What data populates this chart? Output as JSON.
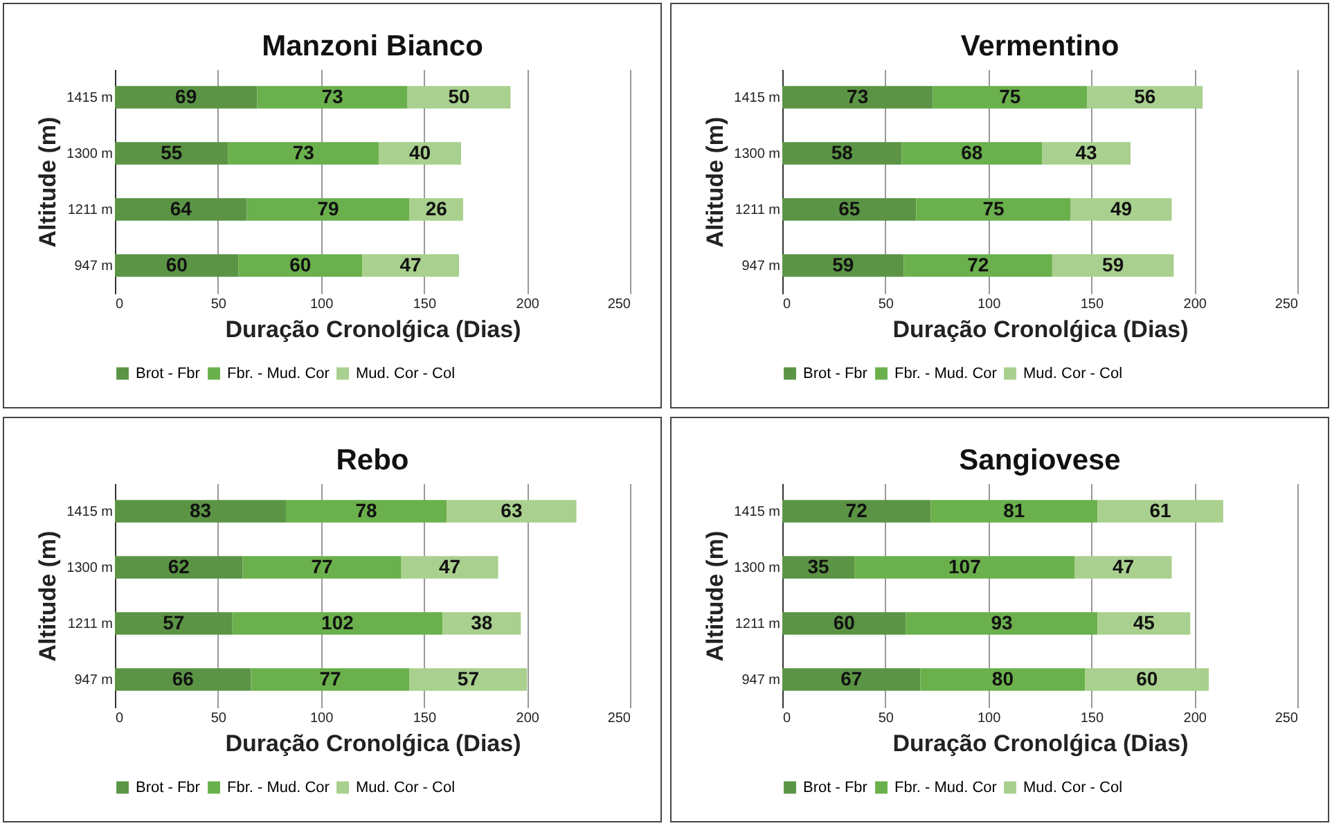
{
  "chart_data": [
    {
      "type": "bar",
      "title": "Manzoni Bianco",
      "orientation": "horizontal",
      "stacked": true,
      "xlabel": "Duração Cronolǵica (Dias)",
      "ylabel": "Altitude (m)",
      "categories": [
        "1415 m",
        "1300 m",
        "1211 m",
        "947 m"
      ],
      "xlim": [
        0,
        250
      ],
      "xticks": [
        0,
        50,
        100,
        150,
        200,
        250
      ],
      "grid": "x",
      "legend": "bottom",
      "data_labels": true,
      "series": [
        {
          "name": "Brot - Fbr",
          "color": "#5b9444",
          "values": [
            69,
            55,
            64,
            60
          ]
        },
        {
          "name": "Fbr. - Mud. Cor",
          "color": "#6ab04c",
          "values": [
            73,
            73,
            79,
            60
          ]
        },
        {
          "name": "Mud. Cor - Col",
          "color": "#a9d08e",
          "values": [
            50,
            40,
            26,
            47
          ]
        }
      ]
    },
    {
      "type": "bar",
      "title": "Vermentino",
      "orientation": "horizontal",
      "stacked": true,
      "xlabel": "Duração Cronolǵica (Dias)",
      "ylabel": "Altitude (m)",
      "categories": [
        "1415 m",
        "1300 m",
        "1211 m",
        "947 m"
      ],
      "xlim": [
        0,
        250
      ],
      "xticks": [
        0,
        50,
        100,
        150,
        200,
        250
      ],
      "grid": "x",
      "legend": "bottom",
      "data_labels": true,
      "series": [
        {
          "name": "Brot - Fbr",
          "color": "#5b9444",
          "values": [
            73,
            58,
            65,
            59
          ]
        },
        {
          "name": "Fbr. - Mud. Cor",
          "color": "#6ab04c",
          "values": [
            75,
            68,
            75,
            72
          ]
        },
        {
          "name": "Mud. Cor - Col",
          "color": "#a9d08e",
          "values": [
            56,
            43,
            49,
            59
          ]
        }
      ]
    },
    {
      "type": "bar",
      "title": "Rebo",
      "orientation": "horizontal",
      "stacked": true,
      "xlabel": "Duração Cronolǵica (Dias)",
      "ylabel": "Altitude (m)",
      "categories": [
        "1415 m",
        "1300 m",
        "1211 m",
        "947 m"
      ],
      "xlim": [
        0,
        250
      ],
      "xticks": [
        0,
        50,
        100,
        150,
        200,
        250
      ],
      "grid": "x",
      "legend": "bottom",
      "data_labels": true,
      "series": [
        {
          "name": "Brot - Fbr",
          "color": "#5b9444",
          "values": [
            83,
            62,
            57,
            66
          ]
        },
        {
          "name": "Fbr. - Mud. Cor",
          "color": "#6ab04c",
          "values": [
            78,
            77,
            102,
            77
          ]
        },
        {
          "name": "Mud. Cor - Col",
          "color": "#a9d08e",
          "values": [
            63,
            47,
            38,
            57
          ]
        }
      ]
    },
    {
      "type": "bar",
      "title": "Sangiovese",
      "orientation": "horizontal",
      "stacked": true,
      "xlabel": "Duração Cronolǵica (Dias)",
      "ylabel": "Altitude (m)",
      "categories": [
        "1415 m",
        "1300 m",
        "1211 m",
        "947 m"
      ],
      "xlim": [
        0,
        250
      ],
      "xticks": [
        0,
        50,
        100,
        150,
        200,
        250
      ],
      "grid": "x",
      "legend": "bottom",
      "data_labels": true,
      "series": [
        {
          "name": "Brot - Fbr",
          "color": "#5b9444",
          "values": [
            72,
            35,
            60,
            67
          ]
        },
        {
          "name": "Fbr. - Mud. Cor",
          "color": "#6ab04c",
          "values": [
            81,
            107,
            93,
            80
          ]
        },
        {
          "name": "Mud. Cor - Col",
          "color": "#a9d08e",
          "values": [
            61,
            47,
            45,
            60
          ]
        }
      ]
    }
  ]
}
